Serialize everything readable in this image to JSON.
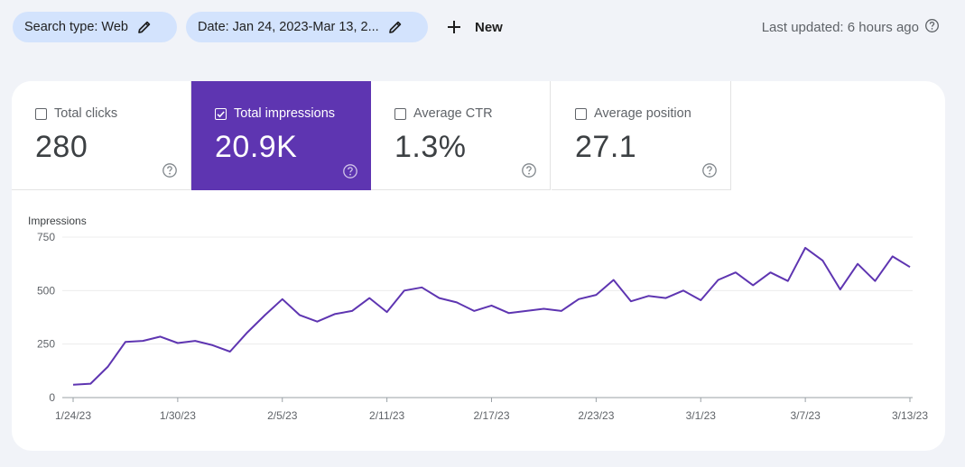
{
  "toolbar": {
    "search_type_label": "Search type: Web",
    "date_label": "Date: Jan 24, 2023-Mar 13, 2...",
    "new_label": "New",
    "last_updated": "Last updated: 6 hours ago"
  },
  "metrics": [
    {
      "label": "Total clicks",
      "value": "280",
      "checked": false
    },
    {
      "label": "Total impressions",
      "value": "20.9K",
      "checked": true
    },
    {
      "label": "Average CTR",
      "value": "1.3%",
      "checked": false
    },
    {
      "label": "Average position",
      "value": "27.1",
      "checked": false
    }
  ],
  "colors": {
    "accent": "#5e35b1",
    "chip_bg": "#d3e3fd",
    "line": "#5e35b1",
    "page_bg": "#f1f3f8"
  },
  "icons": {
    "pencil": "pencil-icon",
    "plus": "plus-icon",
    "help": "help-circle-icon",
    "checkbox": "checkbox-icon"
  },
  "chart_data": {
    "type": "line",
    "ylabel": "Impressions",
    "ylim": [
      0,
      750
    ],
    "y_ticks": [
      0,
      250,
      500,
      750
    ],
    "x_tick_labels": [
      "1/24/23",
      "1/30/23",
      "2/5/23",
      "2/11/23",
      "2/17/23",
      "2/23/23",
      "3/1/23",
      "3/7/23",
      "3/13/23"
    ],
    "x": [
      "1/24/23",
      "1/25/23",
      "1/26/23",
      "1/27/23",
      "1/28/23",
      "1/29/23",
      "1/30/23",
      "1/31/23",
      "2/1/23",
      "2/2/23",
      "2/3/23",
      "2/4/23",
      "2/5/23",
      "2/6/23",
      "2/7/23",
      "2/8/23",
      "2/9/23",
      "2/10/23",
      "2/11/23",
      "2/12/23",
      "2/13/23",
      "2/14/23",
      "2/15/23",
      "2/16/23",
      "2/17/23",
      "2/18/23",
      "2/19/23",
      "2/20/23",
      "2/21/23",
      "2/22/23",
      "2/23/23",
      "2/24/23",
      "2/25/23",
      "2/26/23",
      "2/27/23",
      "2/28/23",
      "3/1/23",
      "3/2/23",
      "3/3/23",
      "3/4/23",
      "3/5/23",
      "3/6/23",
      "3/7/23",
      "3/8/23",
      "3/9/23",
      "3/10/23",
      "3/11/23",
      "3/12/23",
      "3/13/23"
    ],
    "series": [
      {
        "name": "Impressions",
        "values": [
          60,
          65,
          145,
          260,
          265,
          285,
          255,
          265,
          245,
          215,
          305,
          385,
          460,
          385,
          355,
          390,
          405,
          465,
          400,
          500,
          515,
          465,
          445,
          405,
          430,
          395,
          405,
          415,
          405,
          460,
          480,
          550,
          450,
          475,
          465,
          500,
          455,
          550,
          585,
          525,
          585,
          545,
          700,
          640,
          505,
          625,
          545,
          660,
          610
        ]
      }
    ],
    "grid": true,
    "legend": "none"
  }
}
